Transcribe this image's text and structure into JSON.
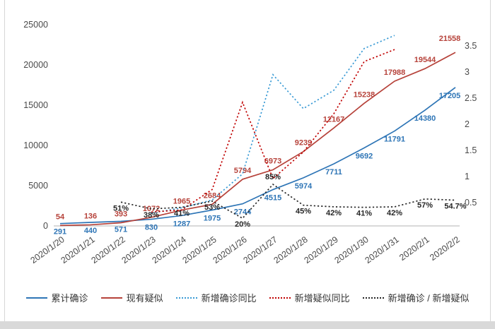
{
  "page": {
    "background": "#ffffff",
    "bottom_strip_color": "#d9d9d9"
  },
  "chart_data": {
    "type": "line",
    "title": "",
    "grid": false,
    "legend_position": "bottom",
    "categories": [
      "2020/1/20",
      "2020/1/21",
      "2020/1/22",
      "2020/1/23",
      "2020/1/24",
      "2020/1/25",
      "2020/1/26",
      "2020/1/27",
      "2020/1/28",
      "2020/1/29",
      "2020/1/30",
      "2020/1/31",
      "2020/2/1",
      "2020/2/2"
    ],
    "left_axis": {
      "ticks": [
        0,
        5000,
        10000,
        15000,
        20000,
        25000
      ],
      "range": [
        0,
        25000
      ]
    },
    "right_axis": {
      "ticks": [
        0.5,
        1,
        1.5,
        2,
        2.5,
        3,
        3.5
      ],
      "range": [
        0,
        3.9
      ]
    },
    "series": [
      {
        "key": "cumulative-confirmed",
        "name": "累计确诊",
        "axis": "left",
        "style": "solid",
        "color": "#2e75b6",
        "values": [
          291,
          440,
          571,
          830,
          1287,
          1975,
          2744,
          4515,
          5974,
          7711,
          9692,
          11791,
          14380,
          17205
        ],
        "labels": [
          "291",
          "440",
          "571",
          "830",
          "1287",
          "1975",
          "2744",
          "4515",
          "5974",
          "7711",
          "9692",
          "11791",
          "14380",
          "17205"
        ]
      },
      {
        "key": "current-suspected",
        "name": "现有疑似",
        "axis": "left",
        "style": "solid",
        "color": "#b6423a",
        "values": [
          54,
          136,
          393,
          1072,
          1965,
          2684,
          5794,
          6973,
          9239,
          12167,
          15238,
          17988,
          19544,
          21558
        ],
        "labels": [
          "54",
          "136",
          "393",
          "1072",
          "1965",
          "2684",
          "5794",
          "6973",
          "9239",
          "12167",
          "15238",
          "17988",
          "19544",
          "21558"
        ]
      },
      {
        "key": "new-confirmed-growth-ratio",
        "name": "新增确诊同比",
        "axis": "right",
        "style": "dotted",
        "color": "#3a9bd5",
        "values": [
          null,
          null,
          null,
          0.3,
          0.4,
          0.55,
          1.05,
          2.95,
          2.3,
          2.65,
          3.45,
          3.7,
          null,
          null
        ],
        "labels": null
      },
      {
        "key": "new-suspected-growth-ratio",
        "name": "新增疑似同比",
        "axis": "right",
        "style": "dotted",
        "color": "#c00000",
        "values": [
          null,
          null,
          null,
          0.32,
          0.36,
          0.75,
          2.42,
          0.96,
          1.47,
          2.2,
          3.2,
          3.43,
          null,
          null
        ],
        "labels": null
      },
      {
        "key": "new-confirmed-over-new-suspected",
        "name": "新增确诊 / 新增疑似",
        "axis": "right",
        "style": "dotted",
        "color": "#262626",
        "values": [
          null,
          null,
          0.51,
          0.38,
          0.41,
          0.53,
          0.2,
          0.85,
          0.45,
          0.42,
          0.41,
          0.42,
          0.57,
          0.547
        ],
        "labels": [
          null,
          null,
          "51%",
          "38%",
          "41%",
          "53%",
          "20%",
          "85%",
          "45%",
          "42%",
          "41%",
          "42%",
          "57%",
          "54.7%"
        ]
      }
    ]
  }
}
